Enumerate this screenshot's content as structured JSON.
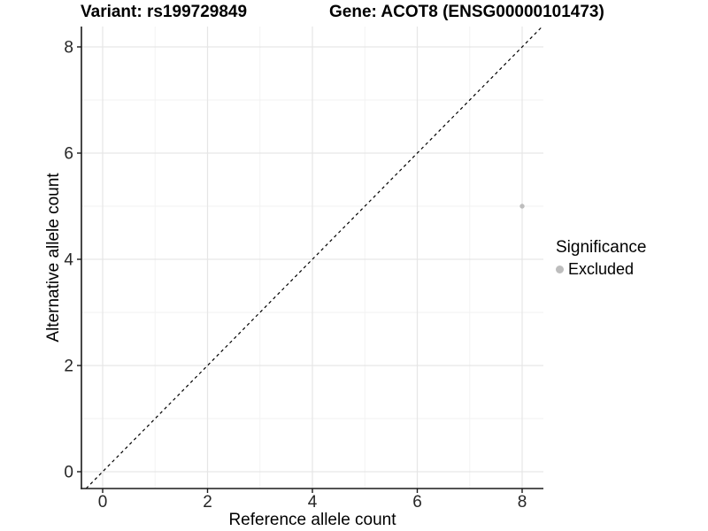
{
  "chart_data": {
    "type": "scatter",
    "title_variant": "Variant: rs199729849",
    "title_gene": "Gene: ACOT8 (ENSG00000101473)",
    "xlabel": "Reference allele count",
    "ylabel": "Alternative allele count",
    "x_ticks": [
      0,
      2,
      4,
      6,
      8
    ],
    "y_ticks": [
      0,
      2,
      4,
      6,
      8
    ],
    "x_minor_ticks": [
      1,
      3,
      5,
      7
    ],
    "y_minor_ticks": [
      1,
      3,
      5,
      7
    ],
    "xlim": [
      -0.4,
      8.4
    ],
    "ylim": [
      -0.32,
      8.38
    ],
    "grid": true,
    "points": [
      {
        "x": 8,
        "y": 5,
        "significance": "Excluded"
      }
    ],
    "reference_line": {
      "type": "identity",
      "slope": 1,
      "intercept": 0,
      "linestyle": "dashed",
      "color": "#000000"
    },
    "legend": {
      "position": "right",
      "title": "Significance",
      "items": [
        {
          "label": "Excluded",
          "color": "#bdbdbd"
        }
      ]
    },
    "colors": {
      "background": "#ffffff",
      "point": "#bdbdbd",
      "grid_major": "#e6e6e6",
      "grid_minor": "#f2f2f2",
      "axis_line": "#1a1a1a",
      "tick_mark": "#1a1a1a",
      "tick_text": "#262626"
    }
  }
}
